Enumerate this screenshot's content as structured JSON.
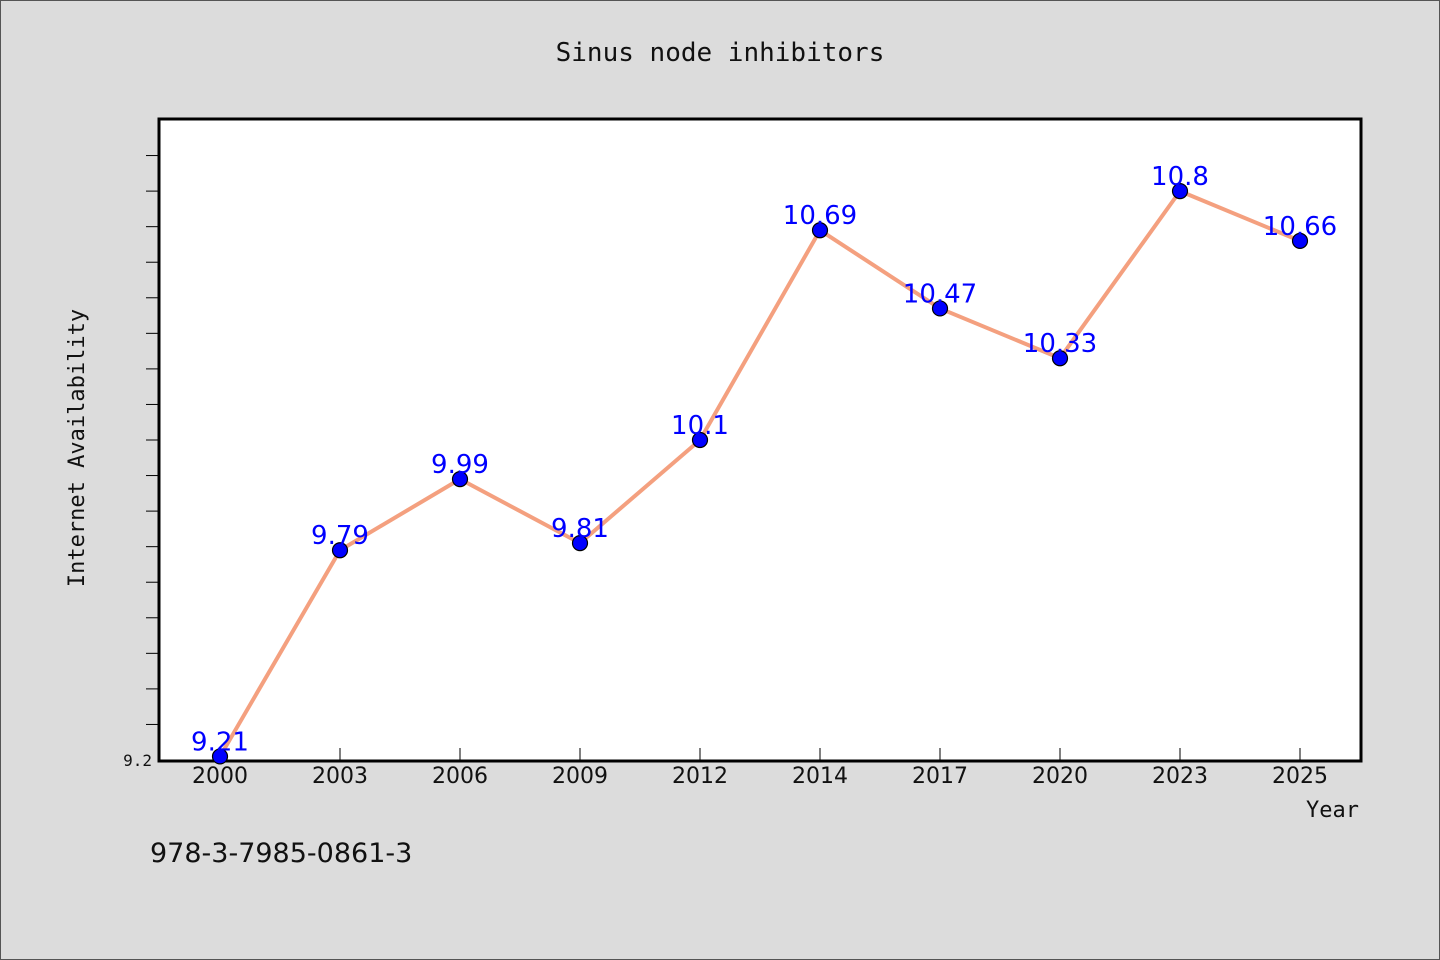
{
  "chart_data": {
    "type": "line",
    "title": "Sinus node inhibitors",
    "xlabel": "Year",
    "ylabel": "Internet Availability",
    "categories": [
      "2000",
      "2003",
      "2006",
      "2009",
      "2012",
      "2014",
      "2017",
      "2020",
      "2023",
      "2025"
    ],
    "series": [
      {
        "values": [
          9.21,
          9.79,
          9.99,
          9.81,
          10.1,
          10.69,
          10.47,
          10.33,
          10.8,
          10.66
        ],
        "labels": [
          "9.21",
          "9.79",
          "9.99",
          "9.81",
          "10.1",
          "10.69",
          "10.47",
          "10.33",
          "10.8",
          "10.66"
        ]
      }
    ],
    "ylim": [
      9.2,
      11.0
    ],
    "yticks_labeled": [
      {
        "value": 9.2,
        "label": "9.2"
      }
    ],
    "grid": false,
    "line_color": "#f4a07f",
    "marker_color": "#0000ff",
    "label_color": "#0000ff"
  },
  "footer_text": "978-3-7985-0861-3"
}
